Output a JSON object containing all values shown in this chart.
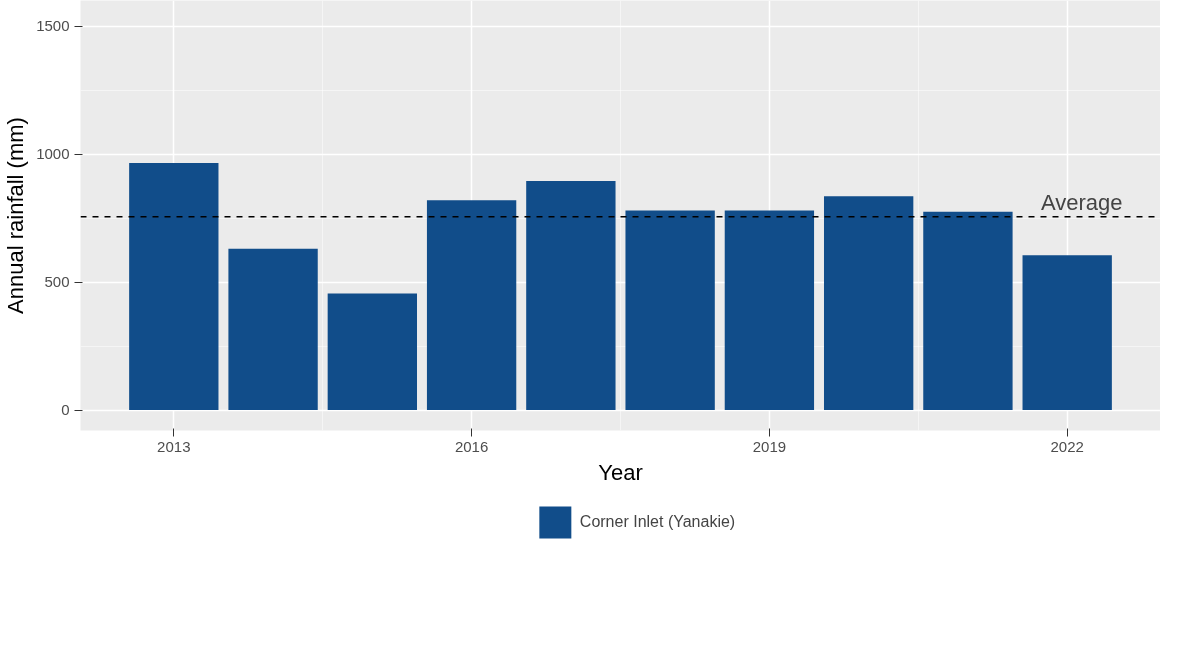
{
  "chart_data": {
    "type": "bar",
    "xlabel": "Year",
    "ylabel": "Annual rainfall (mm)",
    "x": [
      2013,
      2014,
      2015,
      2016,
      2017,
      2018,
      2019,
      2020,
      2021,
      2022
    ],
    "series": [
      {
        "name": "Corner Inlet (Yanakie)",
        "color": "#114d8a",
        "values": [
          965,
          630,
          455,
          820,
          895,
          780,
          780,
          835,
          775,
          605
        ]
      }
    ],
    "xlim": [
      2012.06,
      2022.94
    ],
    "xticks": [
      2013,
      2016,
      2019,
      2022
    ],
    "ylim": [
      -80,
      1600
    ],
    "yticks": [
      0,
      500,
      1000,
      1500
    ],
    "ref_lines": [
      {
        "axis": "y",
        "value": 755,
        "label": "Average",
        "line_style": "dashed",
        "color": "#000000"
      }
    ],
    "grid": true,
    "legend": "bottom"
  }
}
